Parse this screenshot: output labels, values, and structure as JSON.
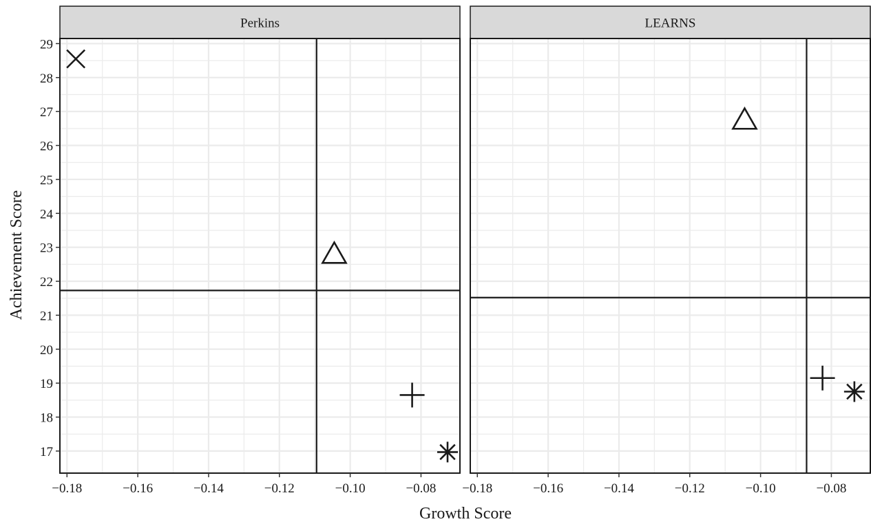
{
  "chart_data": {
    "type": "scatter",
    "xlabel": "Growth Score",
    "ylabel": "Achievement Score",
    "xlim": [
      -0.182,
      -0.069
    ],
    "ylim": [
      16.35,
      29.15
    ],
    "x_ticks": [
      -0.18,
      -0.16,
      -0.14,
      -0.12,
      -0.1,
      -0.08
    ],
    "x_tick_labels": [
      "−0.18",
      "−0.16",
      "−0.14",
      "−0.12",
      "−0.10",
      "−0.08"
    ],
    "y_ticks": [
      17,
      18,
      19,
      20,
      21,
      22,
      23,
      24,
      25,
      26,
      27,
      28,
      29
    ],
    "y_tick_labels": [
      "17",
      "18",
      "19",
      "20",
      "21",
      "22",
      "23",
      "24",
      "25",
      "26",
      "27",
      "28",
      "29"
    ],
    "grid": true,
    "panels": [
      {
        "title": "Perkins",
        "vline": -0.1095,
        "hline": 21.73,
        "points": [
          {
            "x": -0.1775,
            "y": 28.55,
            "marker": "cross"
          },
          {
            "x": -0.1045,
            "y": 22.8,
            "marker": "triangle"
          },
          {
            "x": -0.0825,
            "y": 18.65,
            "marker": "plus"
          },
          {
            "x": -0.0725,
            "y": 16.97,
            "marker": "asterisk"
          }
        ]
      },
      {
        "title": "LEARNS",
        "vline": -0.087,
        "hline": 21.52,
        "points": [
          {
            "x": -0.1045,
            "y": 26.75,
            "marker": "triangle"
          },
          {
            "x": -0.0825,
            "y": 19.15,
            "marker": "plus"
          },
          {
            "x": -0.0735,
            "y": 18.75,
            "marker": "asterisk"
          }
        ]
      }
    ]
  },
  "colors": {
    "strip_fill": "#d9d9d9",
    "grid": "#ebebeb",
    "ink": "#1a1a1a",
    "tick_text": "#4d4d4d"
  }
}
